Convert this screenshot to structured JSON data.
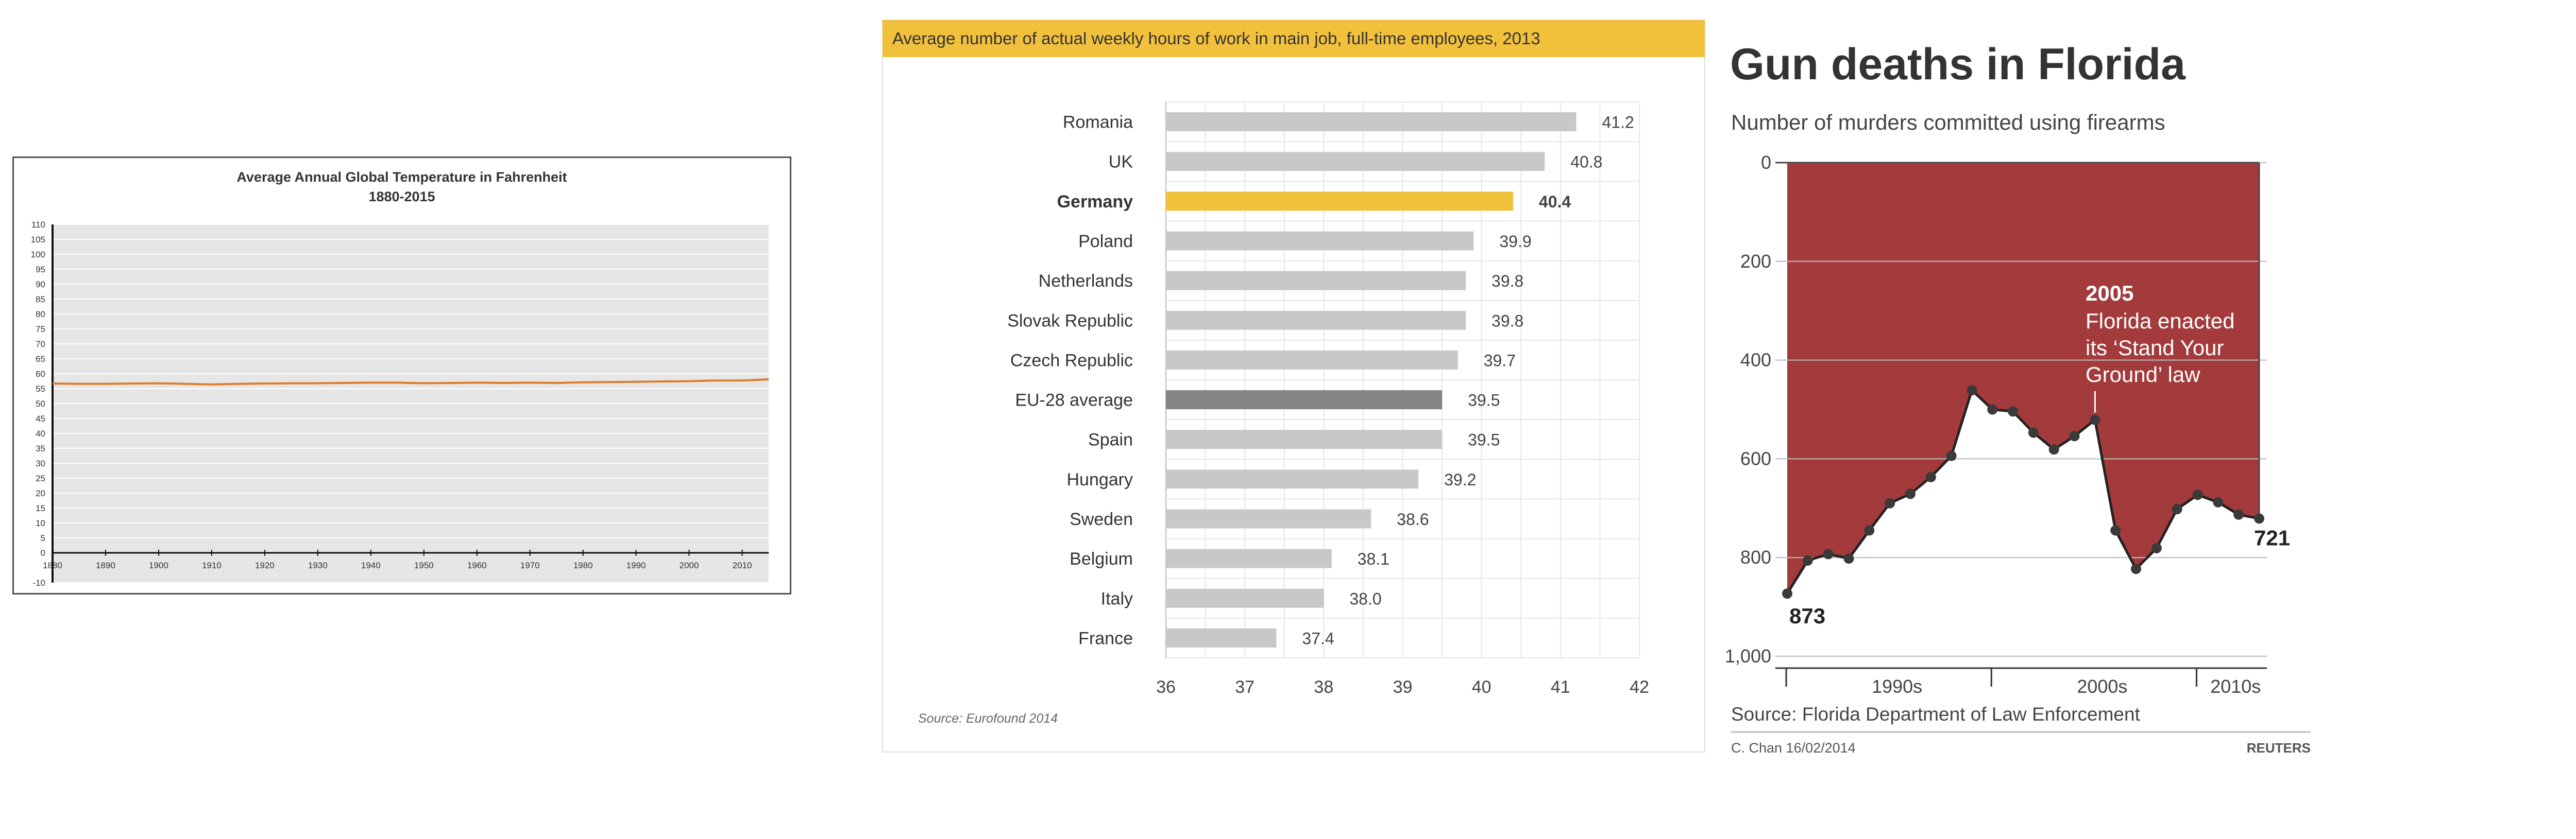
{
  "chart_data": [
    {
      "type": "line",
      "title": "Average Annual Global Temperature in Fahrenheit",
      "subtitle": "1880-2015",
      "xlabel": "",
      "ylabel": "",
      "xlim": [
        1880,
        2015
      ],
      "ylim": [
        -10,
        110
      ],
      "y_ticks": [
        -10,
        0,
        5,
        10,
        15,
        20,
        25,
        30,
        35,
        40,
        45,
        50,
        55,
        60,
        65,
        70,
        75,
        80,
        85,
        90,
        95,
        100,
        105,
        110
      ],
      "x_ticks": [
        1880,
        1890,
        1900,
        1910,
        1920,
        1930,
        1940,
        1950,
        1960,
        1970,
        1980,
        1990,
        2000,
        2010
      ],
      "grid": true,
      "colors": {
        "line": "#e07b28",
        "plot_bg": "#e6e6e6",
        "frame": "#4a4f57"
      },
      "series": [
        {
          "x": [
            1880,
            1885,
            1890,
            1895,
            1900,
            1905,
            1910,
            1915,
            1920,
            1925,
            1930,
            1935,
            1940,
            1945,
            1950,
            1955,
            1960,
            1965,
            1970,
            1975,
            1980,
            1985,
            1990,
            1995,
            2000,
            2005,
            2010,
            2015
          ],
          "values": [
            56.7,
            56.6,
            56.6,
            56.7,
            56.8,
            56.6,
            56.4,
            56.6,
            56.7,
            56.8,
            56.8,
            56.9,
            57.0,
            57.0,
            56.8,
            56.9,
            57.0,
            56.9,
            57.0,
            56.9,
            57.1,
            57.2,
            57.3,
            57.4,
            57.5,
            57.7,
            57.7,
            58.1
          ]
        }
      ]
    },
    {
      "type": "bar",
      "orientation": "horizontal",
      "title": "Average number of actual weekly hours of work in main job, full-time employees, 2013",
      "source": "Source: Eurofound 2014",
      "xlim": [
        36,
        42
      ],
      "x_ticks": [
        "36",
        "37",
        "38",
        "39",
        "40",
        "41",
        "42"
      ],
      "categories": [
        "Romania",
        "UK",
        "Germany",
        "Poland",
        "Netherlands",
        "Slovak Republic",
        "Czech Republic",
        "EU-28 average",
        "Spain",
        "Hungary",
        "Sweden",
        "Belgium",
        "Italy",
        "France"
      ],
      "values": [
        41.2,
        40.8,
        40.4,
        39.9,
        39.8,
        39.8,
        39.7,
        39.5,
        39.5,
        39.2,
        38.6,
        38.1,
        38.0,
        37.4
      ],
      "value_labels": [
        "41.2",
        "40.8",
        "40.4",
        "39.9",
        "39.8",
        "39.8",
        "39.7",
        "39.5",
        "39.5",
        "39.2",
        "38.6",
        "38.1",
        "38.0",
        "37.4"
      ],
      "highlight": {
        "Germany": "#f2c13c",
        "EU-28 average": "#858585"
      },
      "grid": true,
      "colors": {
        "bar": "#c8c8c8",
        "header_bg": "#f2c13c",
        "grid": "#e6e6e6"
      }
    },
    {
      "type": "area",
      "title": "Gun deaths in Florida",
      "subtitle": "Number of murders committed using firearms",
      "source": "Source: Florida Department of Law Enforcement",
      "credit": "C. Chan  16/02/2014",
      "logo": "REUTERS",
      "y_inverted": true,
      "ylim": [
        0,
        1000
      ],
      "y_ticks": [
        "0",
        "200",
        "400",
        "600",
        "800",
        "1,000"
      ],
      "x_period_labels": [
        "1990s",
        "2000s",
        "2010s"
      ],
      "x": [
        1990,
        1991,
        1992,
        1993,
        1994,
        1995,
        1996,
        1997,
        1998,
        1999,
        2000,
        2001,
        2002,
        2003,
        2004,
        2005,
        2006,
        2007,
        2008,
        2009,
        2010,
        2011,
        2012,
        2013
      ],
      "values": [
        873,
        806,
        793,
        802,
        745,
        690,
        671,
        637,
        594,
        461,
        500,
        504,
        547,
        581,
        554,
        521,
        745,
        823,
        781,
        702,
        673,
        688,
        713,
        721
      ],
      "point_labels": {
        "first": "873",
        "last": "721"
      },
      "annotation": {
        "year": "2005",
        "lines": [
          "Florida enacted",
          "its ‘Stand Your",
          "Ground’ law"
        ]
      },
      "colors": {
        "area": "#a33a3c",
        "line": "#222222",
        "marker": "#3a3a3a",
        "annotation_text": "#ffffff"
      }
    }
  ]
}
